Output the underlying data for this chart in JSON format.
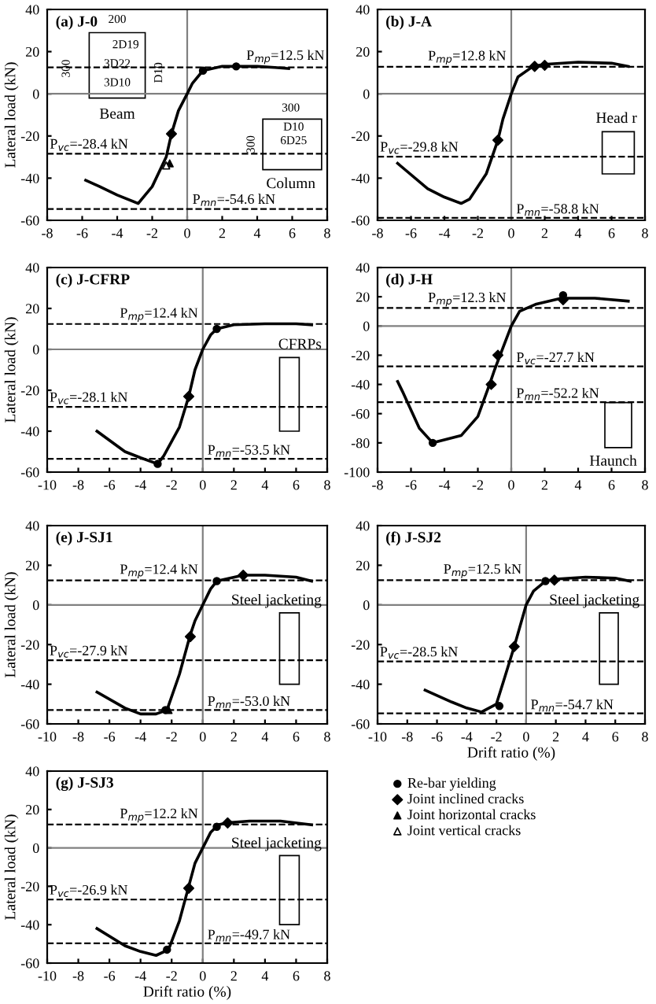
{
  "chart_data": [
    {
      "type": "line",
      "title": "(a) J-0",
      "ylabel": "Lateral load (kN)",
      "xlim": [
        -8,
        8
      ],
      "ylim": [
        -60,
        40
      ],
      "xticks": [
        -8,
        -6,
        -4,
        -2,
        0,
        2,
        4,
        6,
        8
      ],
      "yticks": [
        -60,
        -40,
        -20,
        0,
        20,
        40
      ],
      "legend": "right",
      "series": [
        {
          "type": "line",
          "color": "#000000",
          "x": [
            -5.8,
            -5,
            -4,
            -2.8,
            -2,
            -1.2,
            -0.9,
            -0.5,
            0,
            0.3,
            0.9,
            2,
            3,
            4,
            5,
            5.8
          ],
          "values": [
            -41,
            -44,
            -48,
            -52,
            -44,
            -30,
            -19,
            -8,
            0,
            5,
            11,
            13,
            13,
            13,
            12.5,
            12
          ]
        },
        {
          "type": "scatter",
          "name": "Re-bar yielding",
          "marker": "circle",
          "color": "#000000",
          "x": [
            0.9,
            2.8
          ],
          "values": [
            11,
            13
          ]
        },
        {
          "type": "scatter",
          "name": "Joint inclined cracks",
          "marker": "diamond",
          "color": "#000000",
          "x": [
            -0.9
          ],
          "values": [
            -19
          ]
        },
        {
          "type": "scatter",
          "name": "Joint horizontal cracks",
          "marker": "triangle",
          "color": "#000000",
          "x": [
            -1.0
          ],
          "values": [
            -33
          ]
        },
        {
          "type": "scatter",
          "name": "Joint vertical cracks",
          "marker": "triangle",
          "color": "#ffffff",
          "x": [
            -1.2
          ],
          "values": [
            -34
          ]
        }
      ],
      "ref_lines": [
        {
          "axis": "y",
          "value": 0,
          "color": "#808080",
          "line_style": "solid"
        },
        {
          "axis": "x",
          "value": 0,
          "color": "#808080",
          "line_style": "solid"
        },
        {
          "axis": "y",
          "value": 12.5,
          "label": "P$_{mp}$=12.5 kN",
          "color": "#000000",
          "line_style": "dashed"
        },
        {
          "axis": "y",
          "value": -28.4,
          "label": "P$_{vc}$=-28.4 kN",
          "color": "#000000",
          "line_style": "dashed"
        },
        {
          "axis": "y",
          "value": -54.6,
          "label": "P$_{mn}$=-54.6 kN",
          "color": "#000000",
          "line_style": "dashed"
        }
      ],
      "annotations": [
        "Beam",
        "200",
        "2D19",
        "300",
        "3D22",
        "3D10",
        "D10",
        "Column",
        "300",
        "300",
        "D10",
        "6D25"
      ]
    },
    {
      "type": "line",
      "title": "(b) J-A",
      "xlim": [
        -8,
        8
      ],
      "ylim": [
        -60,
        40
      ],
      "xticks": [
        -8,
        -6,
        -4,
        -2,
        0,
        2,
        4,
        6,
        8
      ],
      "yticks": [
        -60,
        -40,
        -20,
        0,
        20,
        40
      ],
      "series": [
        {
          "type": "line",
          "color": "#000000",
          "x": [
            -6.8,
            -5,
            -4,
            -3,
            -2.5,
            -1.5,
            -0.8,
            -0.5,
            0,
            0.4,
            1.3,
            2,
            4,
            6,
            7
          ],
          "values": [
            -33,
            -45,
            -49,
            -52,
            -50,
            -38,
            -22,
            -12,
            0,
            8,
            13,
            14,
            15,
            14.5,
            13
          ]
        },
        {
          "type": "scatter",
          "marker": "diamond",
          "color": "#000000",
          "x": [
            1.4,
            2,
            -0.8
          ],
          "values": [
            13,
            13.5,
            -22
          ]
        }
      ],
      "ref_lines": [
        {
          "axis": "y",
          "value": 0,
          "color": "#808080",
          "line_style": "solid"
        },
        {
          "axis": "x",
          "value": 0,
          "color": "#808080",
          "line_style": "solid"
        },
        {
          "axis": "y",
          "value": 12.8,
          "label": "P$_{mp}$=12.8 kN",
          "color": "#000000",
          "line_style": "dashed"
        },
        {
          "axis": "y",
          "value": -29.8,
          "label": "P$_{vc}$=-29.8 kN",
          "color": "#000000",
          "line_style": "dashed"
        },
        {
          "axis": "y",
          "value": -58.8,
          "label": "P$_{mn}$=-58.8 kN",
          "color": "#000000",
          "line_style": "dashed"
        }
      ],
      "annotations": [
        "Head r"
      ]
    },
    {
      "type": "line",
      "title": "(c) J-CFRP",
      "ylabel": "Lateral load (kN)",
      "xlim": [
        -10,
        8
      ],
      "ylim": [
        -60,
        40
      ],
      "xticks": [
        -10,
        -8,
        -6,
        -4,
        -2,
        0,
        2,
        4,
        6,
        8
      ],
      "yticks": [
        -60,
        -40,
        -20,
        0,
        20,
        40
      ],
      "series": [
        {
          "type": "line",
          "color": "#000000",
          "x": [
            -6.8,
            -5,
            -4,
            -2.9,
            -2.5,
            -1.5,
            -0.9,
            -0.5,
            0,
            0.5,
            0.9,
            2,
            4,
            6,
            7
          ],
          "values": [
            -40,
            -50,
            -53,
            -56,
            -52,
            -38,
            -23,
            -10,
            0,
            7,
            10,
            12,
            12.5,
            12.5,
            12
          ]
        },
        {
          "type": "scatter",
          "marker": "circle",
          "color": "#000000",
          "x": [
            0.9,
            -2.9
          ],
          "values": [
            10,
            -56
          ]
        },
        {
          "type": "scatter",
          "marker": "diamond",
          "color": "#000000",
          "x": [
            -0.9
          ],
          "values": [
            -23
          ]
        }
      ],
      "ref_lines": [
        {
          "axis": "y",
          "value": 0,
          "color": "#808080",
          "line_style": "solid"
        },
        {
          "axis": "x",
          "value": 0,
          "color": "#808080",
          "line_style": "solid"
        },
        {
          "axis": "y",
          "value": 12.4,
          "label": "P$_{mp}$=12.4 kN",
          "color": "#000000",
          "line_style": "dashed"
        },
        {
          "axis": "y",
          "value": -28.1,
          "label": "P$_{vc}$=-28.1 kN",
          "color": "#000000",
          "line_style": "dashed"
        },
        {
          "axis": "y",
          "value": -53.5,
          "label": "P$_{mn}$=-53.5 kN",
          "color": "#000000",
          "line_style": "dashed"
        }
      ],
      "annotations": [
        "CFRPs"
      ]
    },
    {
      "type": "line",
      "title": "(d) J-H",
      "xlim": [
        -8,
        8
      ],
      "ylim": [
        -100,
        40
      ],
      "xticks": [
        -8,
        -6,
        -4,
        -2,
        0,
        2,
        4,
        6,
        8
      ],
      "yticks": [
        -100,
        -80,
        -60,
        -40,
        -20,
        0,
        20,
        40
      ],
      "series": [
        {
          "type": "line",
          "color": "#000000",
          "x": [
            -6.8,
            -6.5,
            -5.5,
            -4.7,
            -3,
            -2,
            -1.3,
            -1,
            -0.5,
            0,
            0.5,
            1.5,
            3,
            5,
            7
          ],
          "values": [
            -38,
            -45,
            -70,
            -80,
            -75,
            -62,
            -40,
            -30,
            -15,
            0,
            10,
            15,
            19,
            19,
            17
          ]
        },
        {
          "type": "scatter",
          "marker": "circle",
          "color": "#000000",
          "x": [
            3.1,
            -4.7
          ],
          "values": [
            21,
            -80
          ]
        },
        {
          "type": "scatter",
          "marker": "diamond",
          "color": "#000000",
          "x": [
            3.1,
            -0.8,
            -1.2
          ],
          "values": [
            18,
            -20,
            -40
          ]
        }
      ],
      "ref_lines": [
        {
          "axis": "y",
          "value": 0,
          "color": "#808080",
          "line_style": "solid"
        },
        {
          "axis": "x",
          "value": 0,
          "color": "#808080",
          "line_style": "solid"
        },
        {
          "axis": "y",
          "value": 12.3,
          "label": "P$_{mp}$=12.3 kN",
          "color": "#000000",
          "line_style": "dashed"
        },
        {
          "axis": "y",
          "value": -27.7,
          "label": "P$_{vc}$=-27.7 kN",
          "color": "#000000",
          "line_style": "dashed"
        },
        {
          "axis": "y",
          "value": -52.2,
          "label": "P$_{mn}$=-52.2 kN",
          "color": "#000000",
          "line_style": "dashed"
        }
      ],
      "annotations": [
        "Haunch"
      ]
    },
    {
      "type": "line",
      "title": "(e) J-SJ1",
      "ylabel": "Lateral load (kN)",
      "xlim": [
        -10,
        8
      ],
      "ylim": [
        -60,
        40
      ],
      "xticks": [
        -10,
        -8,
        -6,
        -4,
        -2,
        0,
        2,
        4,
        6,
        8
      ],
      "yticks": [
        -60,
        -40,
        -20,
        0,
        20,
        40
      ],
      "series": [
        {
          "type": "line",
          "color": "#000000",
          "x": [
            -6.8,
            -5,
            -4,
            -3,
            -2.3,
            -1.5,
            -0.8,
            -0.5,
            0,
            0.5,
            0.9,
            2.6,
            4,
            6,
            7
          ],
          "values": [
            -44,
            -52,
            -55,
            -55,
            -53,
            -35,
            -15,
            -8,
            0,
            8,
            12,
            15,
            15,
            14,
            12
          ]
        },
        {
          "type": "scatter",
          "marker": "circle",
          "color": "#000000",
          "x": [
            0.9,
            -2.4
          ],
          "values": [
            12,
            -53
          ]
        },
        {
          "type": "scatter",
          "marker": "diamond",
          "color": "#000000",
          "x": [
            2.6,
            -0.8
          ],
          "values": [
            15,
            -16
          ]
        },
        {
          "type": "scatter",
          "marker": "triangle",
          "color": "#000000",
          "x": [
            -2.2
          ],
          "values": [
            -53
          ]
        }
      ],
      "ref_lines": [
        {
          "axis": "y",
          "value": 0,
          "color": "#808080",
          "line_style": "solid"
        },
        {
          "axis": "x",
          "value": 0,
          "color": "#808080",
          "line_style": "solid"
        },
        {
          "axis": "y",
          "value": 12.4,
          "label": "P$_{mp}$=12.4 kN",
          "color": "#000000",
          "line_style": "dashed"
        },
        {
          "axis": "y",
          "value": -27.9,
          "label": "P$_{vc}$=-27.9 kN",
          "color": "#000000",
          "line_style": "dashed"
        },
        {
          "axis": "y",
          "value": -53.0,
          "label": "P$_{mn}$=-53.0 kN",
          "color": "#000000",
          "line_style": "dashed"
        }
      ],
      "annotations": [
        "Steel jacketing"
      ]
    },
    {
      "type": "line",
      "title": "(f) J-SJ2",
      "xlabel": "Drift ratio (%)",
      "xlim": [
        -10,
        8
      ],
      "ylim": [
        -60,
        40
      ],
      "xticks": [
        -10,
        -8,
        -6,
        -4,
        -2,
        0,
        2,
        4,
        6,
        8
      ],
      "yticks": [
        -60,
        -40,
        -20,
        0,
        20,
        40
      ],
      "series": [
        {
          "type": "line",
          "color": "#000000",
          "x": [
            -6.8,
            -5,
            -4,
            -3,
            -2,
            -1.5,
            -0.8,
            0,
            0.5,
            1.3,
            2,
            4,
            6,
            7
          ],
          "values": [
            -43,
            -49,
            -52,
            -54,
            -50,
            -38,
            -21,
            0,
            7,
            12,
            13,
            14,
            13.5,
            12
          ]
        },
        {
          "type": "scatter",
          "marker": "circle",
          "color": "#000000",
          "x": [
            1.3,
            -1.8
          ],
          "values": [
            12,
            -51
          ]
        },
        {
          "type": "scatter",
          "marker": "diamond",
          "color": "#000000",
          "x": [
            1.9,
            -0.8
          ],
          "values": [
            12.5,
            -21
          ]
        }
      ],
      "ref_lines": [
        {
          "axis": "y",
          "value": 0,
          "color": "#808080",
          "line_style": "solid"
        },
        {
          "axis": "x",
          "value": 0,
          "color": "#808080",
          "line_style": "solid"
        },
        {
          "axis": "y",
          "value": 12.5,
          "label": "P$_{mp}$=12.5 kN",
          "color": "#000000",
          "line_style": "dashed"
        },
        {
          "axis": "y",
          "value": -28.5,
          "label": "P$_{vc}$=-28.5 kN",
          "color": "#000000",
          "line_style": "dashed"
        },
        {
          "axis": "y",
          "value": -54.7,
          "label": "P$_{mn}$=-54.7 kN",
          "color": "#000000",
          "line_style": "dashed"
        }
      ],
      "annotations": [
        "Steel jacketing"
      ]
    },
    {
      "type": "line",
      "title": "(g) J-SJ3",
      "ylabel": "Lateral load (kN)",
      "xlabel": "Drift ratio (%)",
      "xlim": [
        -10,
        8
      ],
      "ylim": [
        -60,
        40
      ],
      "xticks": [
        -10,
        -8,
        -6,
        -4,
        -2,
        0,
        2,
        4,
        6,
        8
      ],
      "yticks": [
        -60,
        -40,
        -20,
        0,
        20,
        40
      ],
      "series": [
        {
          "type": "line",
          "color": "#000000",
          "x": [
            -6.8,
            -5,
            -4,
            -3,
            -2.2,
            -1.5,
            -0.9,
            -0.5,
            0,
            0.5,
            1,
            1.5,
            3,
            5,
            7
          ],
          "values": [
            -42,
            -51,
            -54,
            -56,
            -53,
            -38,
            -20,
            -8,
            0,
            8,
            12,
            13,
            14,
            14,
            12
          ]
        },
        {
          "type": "scatter",
          "marker": "circle",
          "color": "#000000",
          "x": [
            0.9,
            -2.3
          ],
          "values": [
            11,
            -53
          ]
        },
        {
          "type": "scatter",
          "marker": "diamond",
          "color": "#000000",
          "x": [
            1.6,
            -0.9
          ],
          "values": [
            13,
            -21
          ]
        }
      ],
      "ref_lines": [
        {
          "axis": "y",
          "value": 0,
          "color": "#808080",
          "line_style": "solid"
        },
        {
          "axis": "x",
          "value": 0,
          "color": "#808080",
          "line_style": "solid"
        },
        {
          "axis": "y",
          "value": 12.2,
          "label": "P$_{mp}$=12.2 kN",
          "color": "#000000",
          "line_style": "dashed"
        },
        {
          "axis": "y",
          "value": -26.9,
          "label": "P$_{vc}$=-26.9 kN",
          "color": "#000000",
          "line_style": "dashed"
        },
        {
          "axis": "y",
          "value": -49.7,
          "label": "P$_{mn}$=-49.7 kN",
          "color": "#000000",
          "line_style": "dashed"
        }
      ],
      "annotations": [
        "Steel jacketing"
      ]
    }
  ]
}
